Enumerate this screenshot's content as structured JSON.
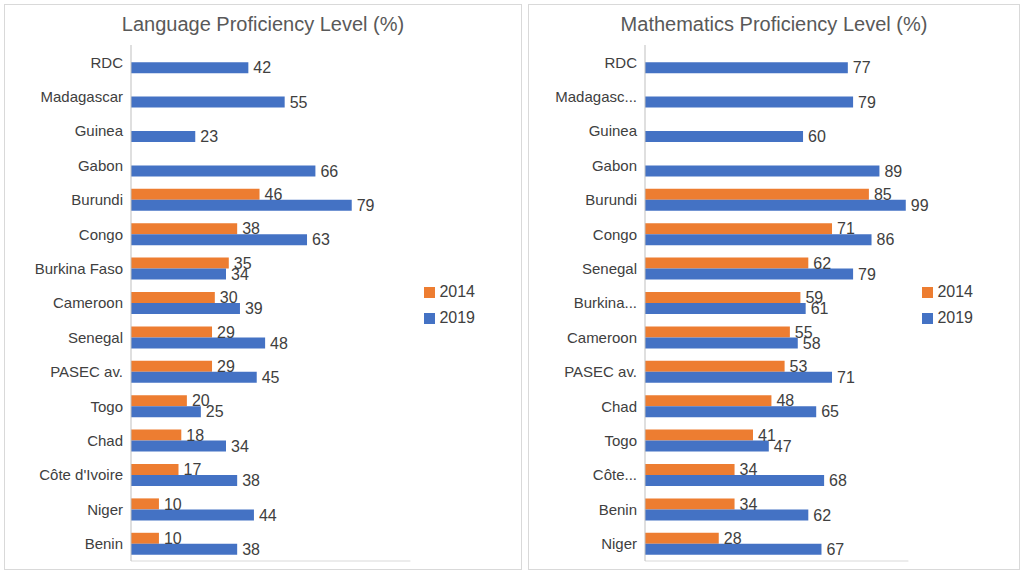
{
  "chart_data": [
    {
      "type": "bar",
      "title": "Language Proficiency Level (%)",
      "orientation": "horizontal",
      "categories": [
        "RDC",
        "Madagascar",
        "Guinea",
        "Gabon",
        "Burundi",
        "Congo",
        "Burkina Faso",
        "Cameroon",
        "Senegal",
        "PASEC av.",
        "Togo",
        "Chad",
        "Côte d'Ivoire",
        "Niger",
        "Benin"
      ],
      "series": [
        {
          "name": "2014",
          "color": "#ed7d31",
          "values": [
            null,
            null,
            null,
            null,
            46,
            38,
            35,
            30,
            29,
            29,
            20,
            18,
            17,
            10,
            10
          ]
        },
        {
          "name": "2019",
          "color": "#4472c4",
          "values": [
            42,
            55,
            23,
            66,
            79,
            63,
            34,
            39,
            48,
            45,
            25,
            34,
            38,
            44,
            38
          ]
        }
      ],
      "xlim": [
        0,
        100
      ],
      "grid": false,
      "legend": "right",
      "data_labels": true,
      "tick_labels": "y"
    },
    {
      "type": "bar",
      "title": "Mathematics Proficiency Level (%)",
      "orientation": "horizontal",
      "categories": [
        "RDC",
        "Madagasc...",
        "Guinea",
        "Gabon",
        "Burundi",
        "Congo",
        "Senegal",
        "Burkina...",
        "Cameroon",
        "PASEC av.",
        "Chad",
        "Togo",
        "Côte...",
        "Benin",
        "Niger"
      ],
      "series": [
        {
          "name": "2014",
          "color": "#ed7d31",
          "values": [
            null,
            null,
            null,
            null,
            85,
            71,
            62,
            59,
            55,
            53,
            48,
            41,
            34,
            34,
            28
          ]
        },
        {
          "name": "2019",
          "color": "#4472c4",
          "values": [
            77,
            79,
            60,
            89,
            99,
            86,
            79,
            61,
            58,
            71,
            65,
            47,
            68,
            62,
            67
          ]
        }
      ],
      "xlim": [
        0,
        100
      ],
      "grid": false,
      "legend": "right",
      "data_labels": true,
      "tick_labels": "y"
    }
  ]
}
